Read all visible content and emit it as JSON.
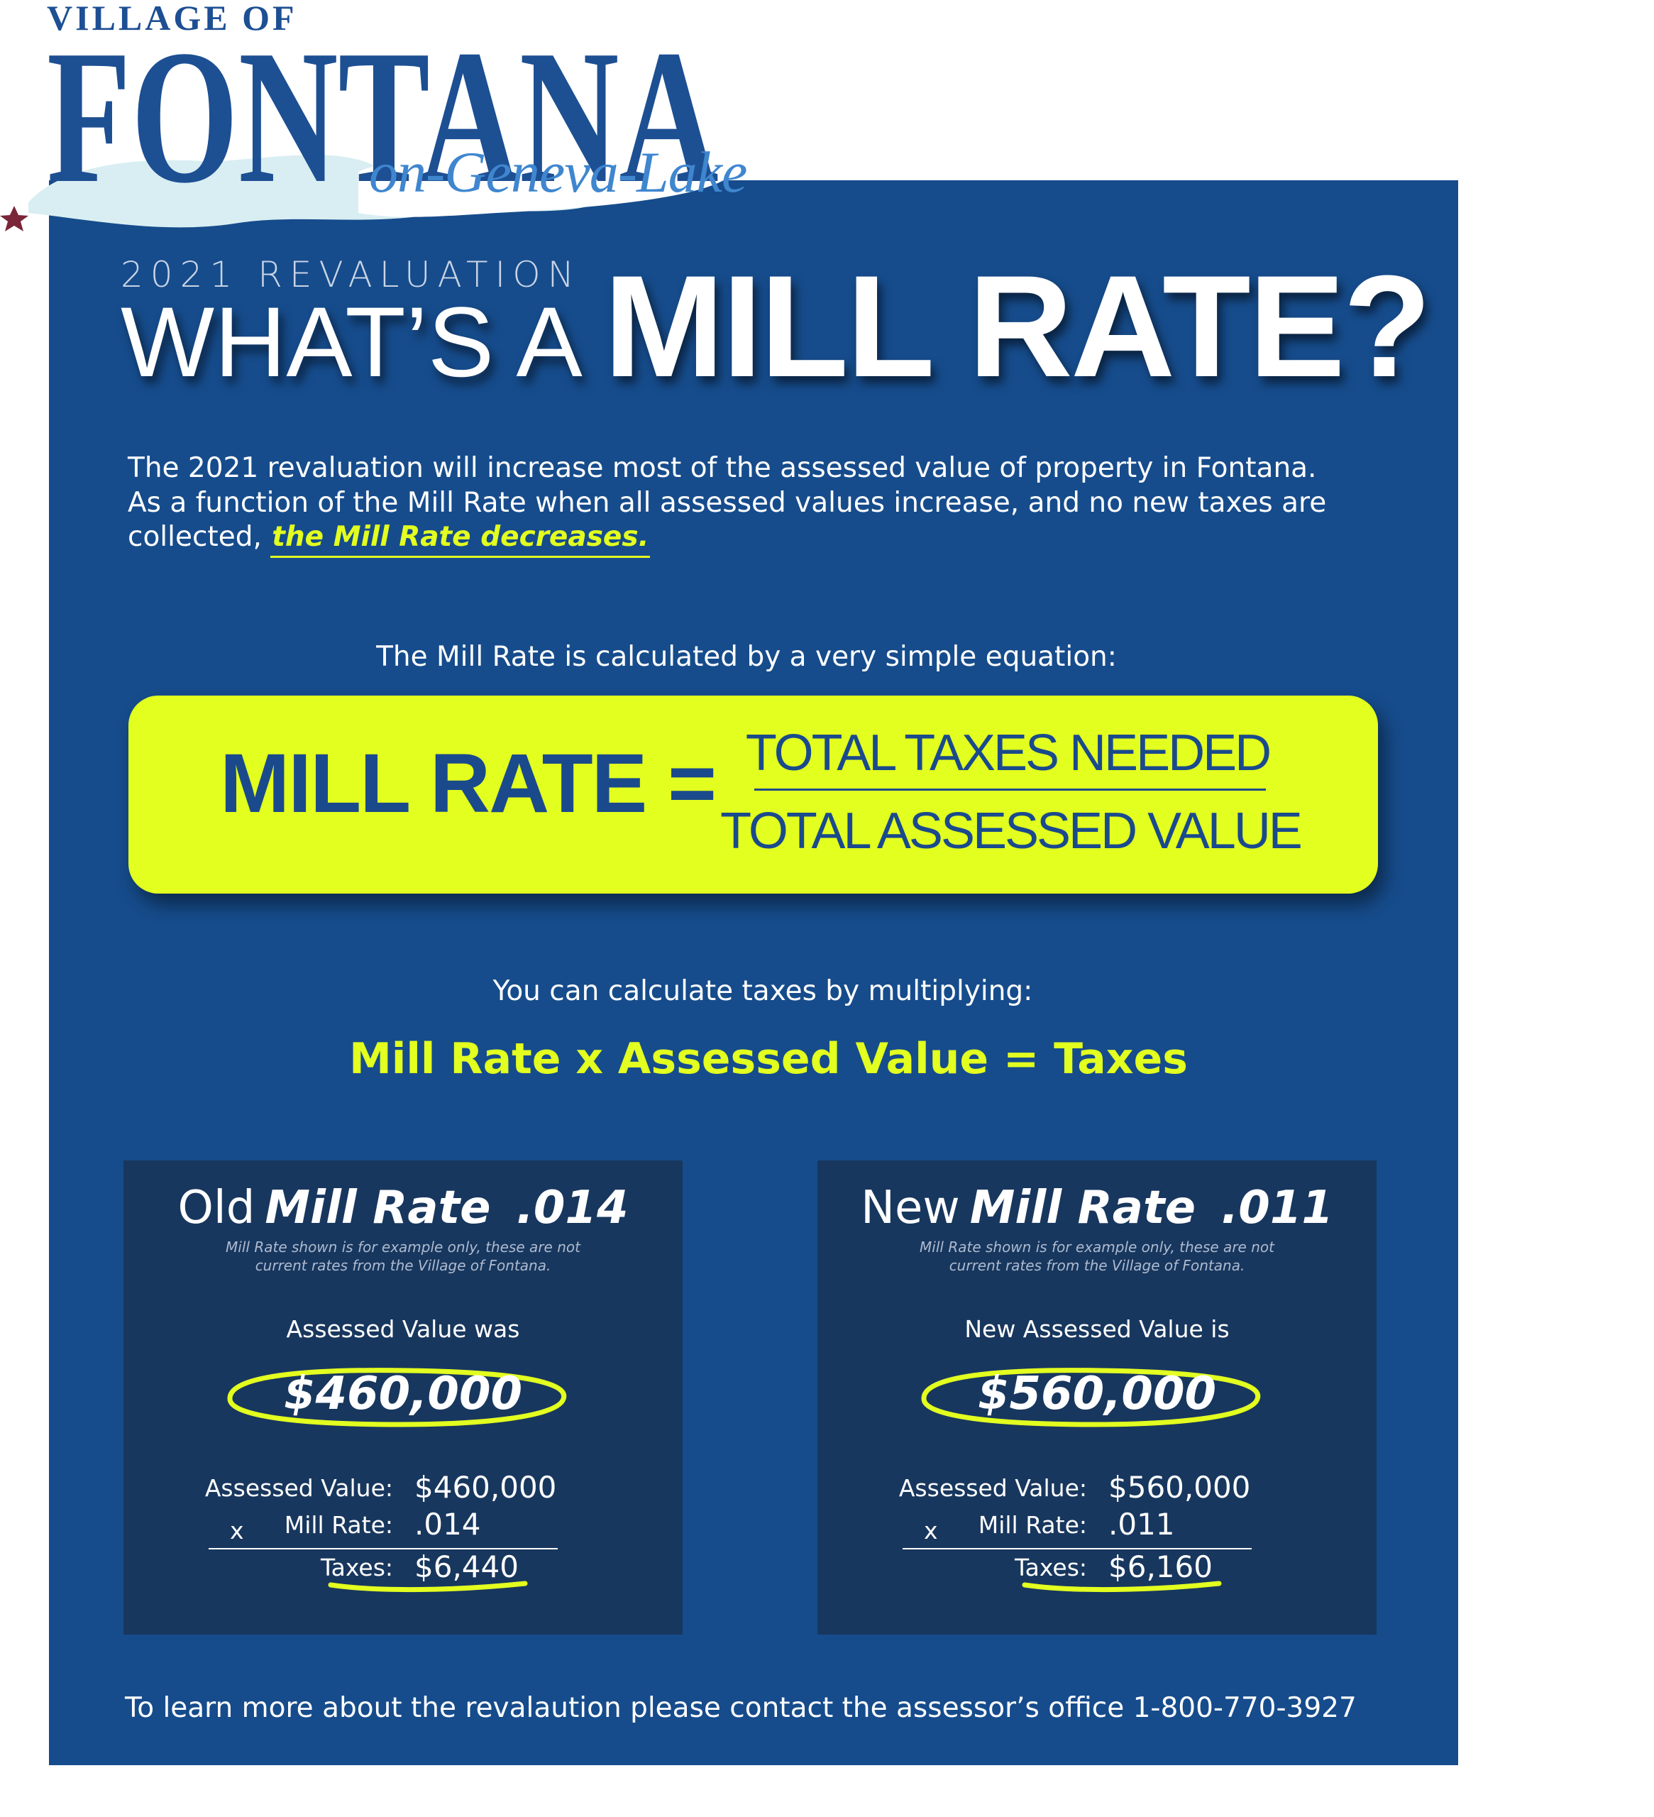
{
  "header": {
    "village_of": "VILLAGE OF",
    "name": "FONTANA",
    "tagline": "on-Geneva-Lake"
  },
  "title": {
    "kicker": "2021 REVALUATION",
    "lead": "WHAT’S A",
    "main": "MILL RATE?"
  },
  "intro": {
    "lines": [
      "The 2021 revaluation will increase most of the assessed value of property in Fontana.",
      "As a function of the Mill Rate when all assessed values increase, and no new taxes are",
      "collected,"
    ],
    "highlight": "the Mill Rate decreases."
  },
  "equation_intro": "The Mill Rate is calculated by a very simple equation:",
  "formula": {
    "left": "MILL RATE =",
    "numerator": "TOTAL TAXES NEEDED",
    "denominator": "TOTAL ASSESSED VALUE"
  },
  "multiply_intro": "You can calculate taxes by multiplying:",
  "multiply_formula": "Mill Rate x Assessed Value =  Taxes",
  "cards": [
    {
      "prefix": "Old",
      "label": "Mill Rate",
      "rate": ".014",
      "note": [
        "Mill Rate shown is for example only, these are not",
        "current rates from the Village of Fontana."
      ],
      "value_caption": "Assessed Value was",
      "value": "$460,000",
      "rows": [
        {
          "label": "Assessed Value:",
          "value": "$460,000"
        },
        {
          "operator": "x",
          "label": "Mill Rate:",
          "value": ".014"
        },
        {
          "label": "Taxes:",
          "value": "$6,440"
        }
      ]
    },
    {
      "prefix": "New",
      "label": "Mill Rate",
      "rate": ".011",
      "note": [
        "Mill Rate shown is for example only, these are not",
        "current rates from the Village of Fontana."
      ],
      "value_caption": "New Assessed Value is",
      "value": "$560,000",
      "rows": [
        {
          "label": "Assessed Value:",
          "value": "$560,000"
        },
        {
          "operator": "x",
          "label": "Mill Rate:",
          "value": ".011"
        },
        {
          "label": "Taxes:",
          "value": "$6,160"
        }
      ]
    }
  ],
  "footer": "To learn more about the revalaution please contact the assessor’s office 1-800-770-3927"
}
